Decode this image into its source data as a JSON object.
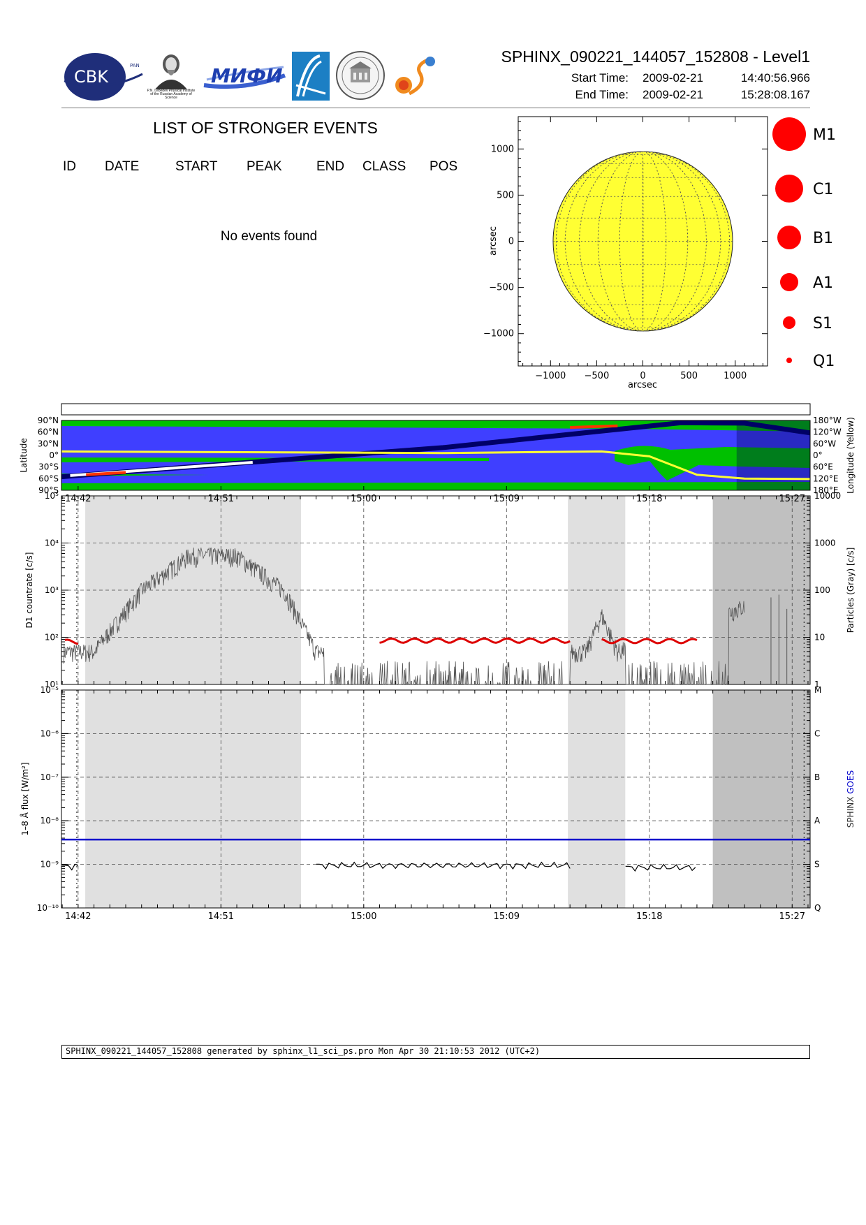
{
  "header": {
    "title": "SPHINX_090221_144057_152808 - Level1",
    "start_label": "Start Time:",
    "start_date": "2009-02-21",
    "start_time": "14:40:56.966",
    "end_label": "End Time:",
    "end_date": "2009-02-21",
    "end_time": "15:28:08.167"
  },
  "logos": [
    {
      "name": "cbk-logo",
      "text": "CBK",
      "sub": "PAN"
    },
    {
      "name": "lebedev-logo",
      "text": "P.N. Lebedev Physical Institute of the Russian Academy of Science"
    },
    {
      "name": "mifi-logo",
      "text": "МИФИ"
    },
    {
      "name": "rocket-logo",
      "text": ""
    },
    {
      "name": "seal-logo",
      "text": ""
    },
    {
      "name": "sun-logo",
      "text": ""
    }
  ],
  "events": {
    "title": "LIST OF STRONGER EVENTS",
    "columns": [
      "ID",
      "DATE",
      "START",
      "PEAK",
      "END",
      "CLASS",
      "POS"
    ],
    "empty_message": "No events found"
  },
  "sun_map": {
    "xlabel": "arcsec",
    "ylabel": "arcsec",
    "x_ticks": [
      "−1000",
      "−500",
      "0",
      "500",
      "1000"
    ],
    "y_ticks": [
      "1000",
      "500",
      "0",
      "−500",
      "−1000"
    ],
    "disk_color": "#ffff33",
    "radius_arcsec": 972
  },
  "class_legend": {
    "marker_color": "#ff0000",
    "items": [
      "M1",
      "C1",
      "B1",
      "A1",
      "S1",
      "Q1"
    ]
  },
  "time_ticks": [
    "14:42",
    "14:51",
    "15:00",
    "15:09",
    "15:18",
    "15:27"
  ],
  "footer": {
    "text": "SPHINX_090221_144057_152808 generated by sphinx_l1_sci_ps.pro Mon Apr 30 21:10:53 2012 (UTC+2)"
  },
  "colors": {
    "ocean": "#3f3fff",
    "land": "#00c000",
    "orbit": "#000066",
    "latitude_track": "#ffff33",
    "saa_light": "#e0e0e0",
    "saa_dark": "#c0c0c0",
    "goes": "#0000cc",
    "particles": "#dd0000"
  },
  "chart_data": [
    {
      "type": "line",
      "name": "orbit-map",
      "ylabel": "Latitude",
      "y2label": "Longitude (Yellow)",
      "y_ticks": [
        "90°N",
        "60°N",
        "30°N",
        "0°",
        "30°S",
        "60°S",
        "90°S"
      ],
      "y2_ticks": [
        "180°W",
        "120°W",
        "60°W",
        "0°",
        "60°E",
        "120°E",
        "180°E"
      ],
      "xlim": [
        "14:40:57",
        "15:28:08"
      ],
      "series": [
        {
          "values_note": "latitude",
          "x": [
            "14:40:57",
            "15:05:00",
            "15:20:00",
            "15:24:00",
            "15:28:08"
          ],
          "y": [
            -55,
            20,
            84,
            83,
            58
          ]
        },
        {
          "values_note": "longitude",
          "x": [
            "14:40:57",
            "15:05:00",
            "15:15:00",
            "15:18:00",
            "15:21:00",
            "15:24:00",
            "15:28:08"
          ],
          "y": [
            -20,
            -12,
            -20,
            5,
            100,
            120,
            122
          ]
        }
      ]
    },
    {
      "type": "line",
      "name": "d1-countrate",
      "ylabel": "D1 countrate [c/s]",
      "y2label": "Particles (Gray) [c/s]",
      "yscale": "log",
      "ylim": [
        10,
        100000
      ],
      "y_ticks": [
        "10¹",
        "10²",
        "10³",
        "10⁴",
        "10⁵"
      ],
      "y2_ticks": [
        "1",
        "10",
        "100",
        "1000",
        "10000"
      ],
      "series": [
        {
          "name": "D1 countrate",
          "x": [
            "14:41:10",
            "14:42:00",
            "15:01:00",
            "15:13:00",
            "15:15:00",
            "15:21:00"
          ],
          "y": [
            85,
            85,
            90,
            88,
            88,
            90
          ]
        },
        {
          "name": "Particles (Gray)",
          "x": [
            "14:43:00",
            "14:46:00",
            "14:49:00",
            "14:52:00",
            "14:55:00",
            "14:57:00",
            "15:14:00",
            "15:15:00",
            "15:16:00",
            "15:25:00"
          ],
          "y": [
            5,
            100,
            550,
            550,
            100,
            5,
            5,
            30,
            5,
            60
          ]
        }
      ]
    },
    {
      "type": "line",
      "name": "goes-flux",
      "ylabel": "1–8 Å flux [W/m²]",
      "y2label": "SPHINX GOES",
      "yscale": "log",
      "ylim": [
        1e-10,
        1e-05
      ],
      "y_ticks": [
        "10⁻¹⁰",
        "10⁻⁹",
        "10⁻⁸",
        "10⁻⁷",
        "10⁻⁶",
        "10⁻⁵"
      ],
      "y2_ticks": [
        "Q",
        "S",
        "A",
        "B",
        "C",
        "M"
      ],
      "series": [
        {
          "name": "GOES",
          "x": [
            "14:40:57",
            "15:28:08"
          ],
          "y": [
            3.7e-09,
            3.7e-09
          ]
        },
        {
          "name": "SPHINX",
          "x": [
            "14:41:00",
            "14:42:00",
            "14:57:00",
            "15:13:00",
            "15:16:30",
            "15:21:00"
          ],
          "y": [
            9e-10,
            9e-10,
            9.5e-10,
            9e-10,
            8.5e-10,
            9e-10
          ]
        }
      ]
    }
  ]
}
